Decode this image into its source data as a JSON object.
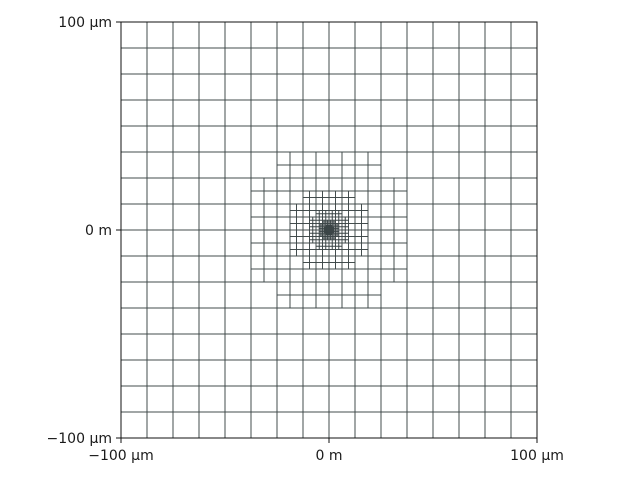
{
  "figure": {
    "type": "quadtree-mesh",
    "x_ticks": [
      {
        "value": -100,
        "label": "−100 µm"
      },
      {
        "value": 0,
        "label": "0 m"
      },
      {
        "value": 100,
        "label": "100 µm"
      }
    ],
    "y_ticks": [
      {
        "value": 100,
        "label": "100 µm"
      },
      {
        "value": 0,
        "label": "0 m"
      },
      {
        "value": -100,
        "label": "−100 µm"
      }
    ],
    "extent": [
      -100,
      100
    ],
    "mesh": {
      "base_cell_size": 12.5,
      "refinement_radii": [
        50,
        25,
        12.5,
        6.25,
        3.125
      ],
      "refinement_levels": 5
    },
    "colors": {
      "mesh_line": "#3c4648",
      "axis": "#111111",
      "text": "#1a1a1a"
    }
  }
}
